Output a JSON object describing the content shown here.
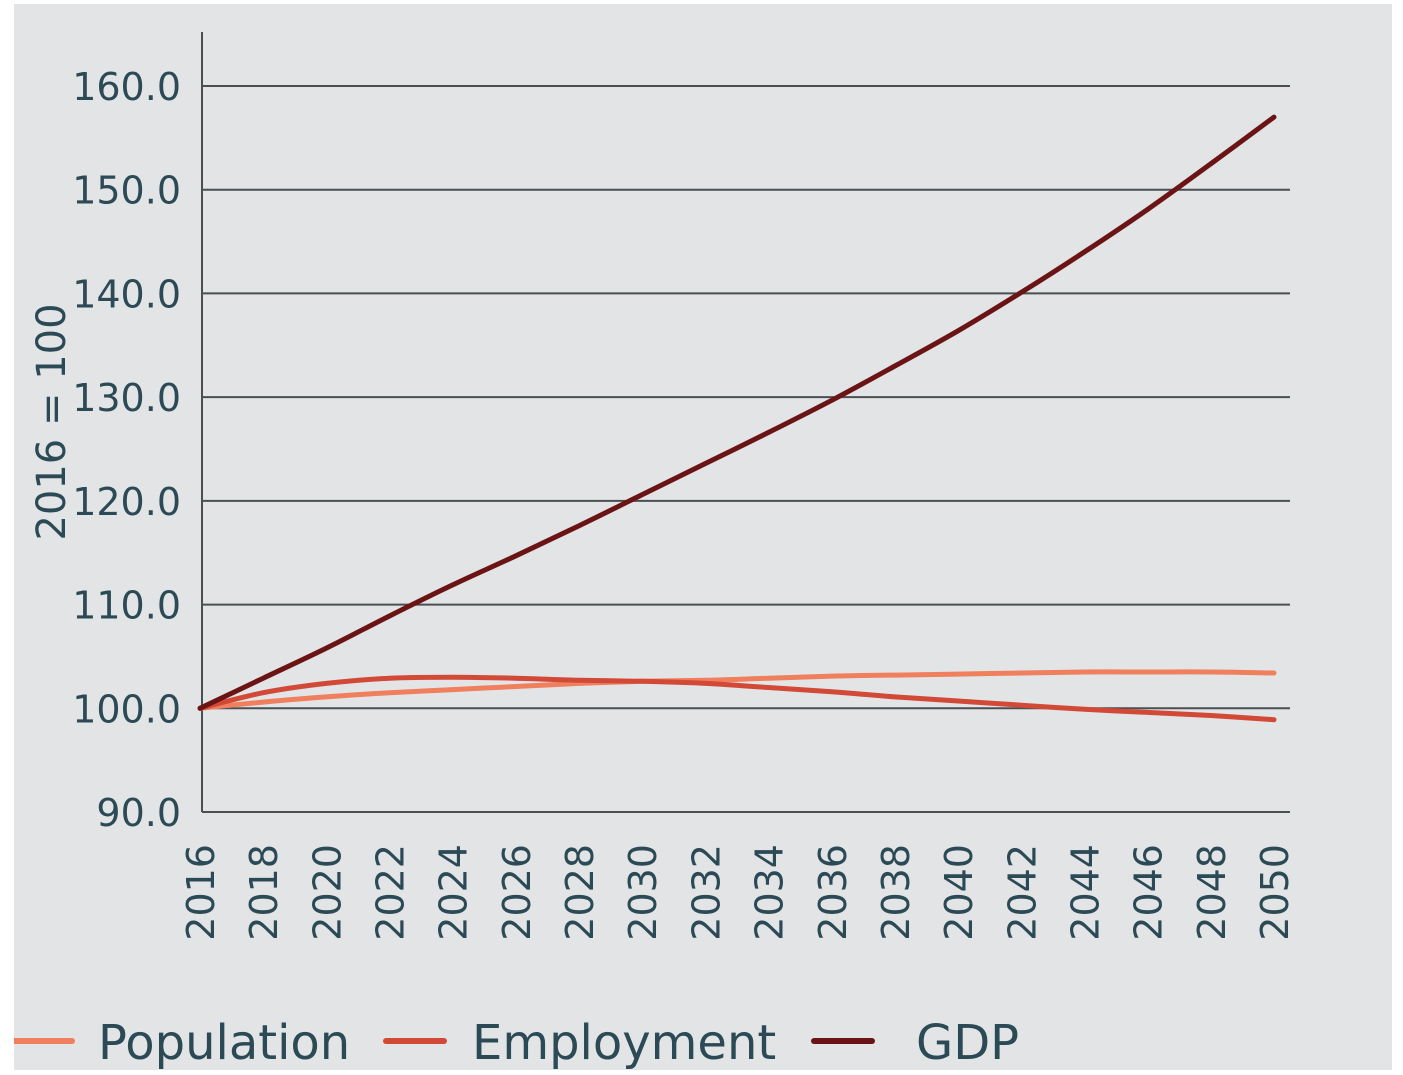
{
  "chart_data": {
    "type": "line",
    "title": "",
    "xlabel": "",
    "ylabel": "2016 = 100",
    "ylim": [
      90,
      160
    ],
    "yticks": [
      "90.0",
      "100.0",
      "110.0",
      "120.0",
      "130.0",
      "140.0",
      "150.0",
      "160.0"
    ],
    "x": [
      2016,
      2018,
      2020,
      2022,
      2024,
      2026,
      2028,
      2030,
      2032,
      2034,
      2036,
      2038,
      2040,
      2042,
      2044,
      2046,
      2048,
      2050
    ],
    "xticks": [
      "2016",
      "2018",
      "2020",
      "2022",
      "2024",
      "2026",
      "2028",
      "2030",
      "2032",
      "2034",
      "2036",
      "2038",
      "2040",
      "2042",
      "2044",
      "2046",
      "2048",
      "2050"
    ],
    "grid": true,
    "legend_position": "bottom",
    "series": [
      {
        "name": "Population",
        "color": "#ef7f5d",
        "values": [
          100.0,
          100.6,
          101.1,
          101.5,
          101.8,
          102.1,
          102.4,
          102.6,
          102.7,
          102.9,
          103.1,
          103.2,
          103.3,
          103.4,
          103.5,
          103.5,
          103.5,
          103.4
        ]
      },
      {
        "name": "Employment",
        "color": "#d24a37",
        "values": [
          100.0,
          101.5,
          102.4,
          102.9,
          103.0,
          102.9,
          102.7,
          102.6,
          102.4,
          102.0,
          101.6,
          101.1,
          100.7,
          100.3,
          99.9,
          99.6,
          99.3,
          98.9
        ]
      },
      {
        "name": "GDP",
        "color": "#6b1416",
        "values": [
          100.0,
          102.9,
          105.8,
          108.9,
          111.9,
          114.7,
          117.6,
          120.6,
          123.6,
          126.6,
          129.7,
          133.0,
          136.4,
          140.1,
          144.0,
          148.1,
          152.5,
          157.0
        ]
      }
    ]
  }
}
